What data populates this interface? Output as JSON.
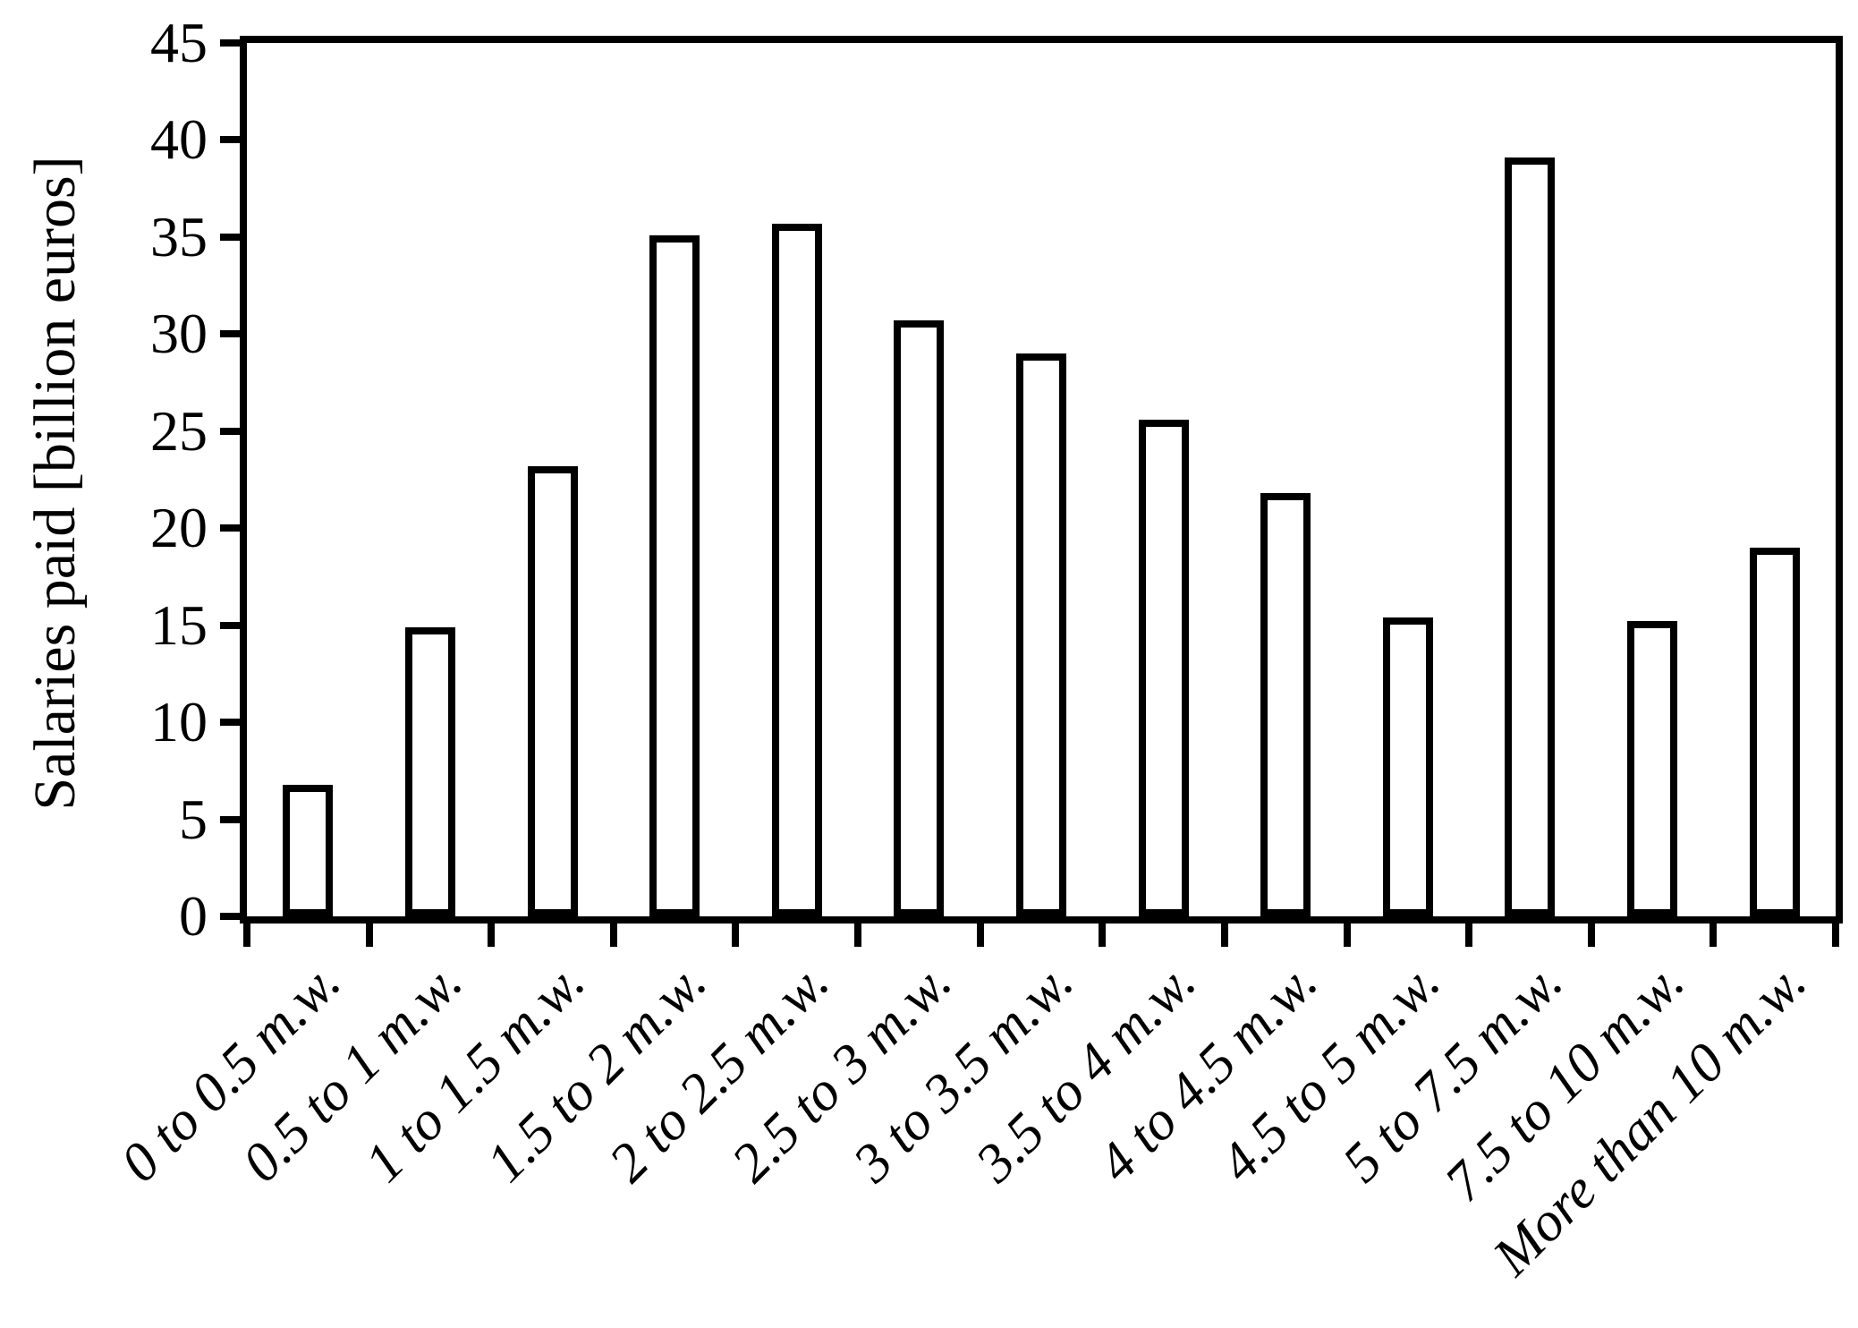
{
  "chart_data": {
    "type": "bar",
    "title": "",
    "xlabel": "",
    "ylabel": "Salaries paid [billion euros]",
    "ylim": [
      0,
      45
    ],
    "ytick_step": 5,
    "y_tick_labels": [
      "0",
      "5",
      "10",
      "15",
      "20",
      "25",
      "30",
      "35",
      "40",
      "45"
    ],
    "grid": false,
    "legend_position": "none",
    "bar_outline_only": true,
    "categories": [
      "0 to 0.5 m.w.",
      "0.5 to 1 m.w.",
      "1 to 1.5 m.w.",
      "1.5 to 2 m.w.",
      "2 to 2.5 m.w.",
      "2.5 to 3 m.w.",
      "3 to 3.5 m.w.",
      "3.5 to 4 m.w.",
      "4 to 4.5 m.w.",
      "4.5 to 5 m.w.",
      "5 to 7.5 m.w.",
      "7.5 to 10 m.w.",
      "More than 10 m.w."
    ],
    "values": [
      6.8,
      14.9,
      23.2,
      35.1,
      35.7,
      30.7,
      29.0,
      25.6,
      21.8,
      15.4,
      39.1,
      15.2,
      19.0
    ],
    "bar_fill": "#ffffff",
    "bar_stroke": "#000000",
    "axis_color": "#000000",
    "background": "#ffffff"
  }
}
